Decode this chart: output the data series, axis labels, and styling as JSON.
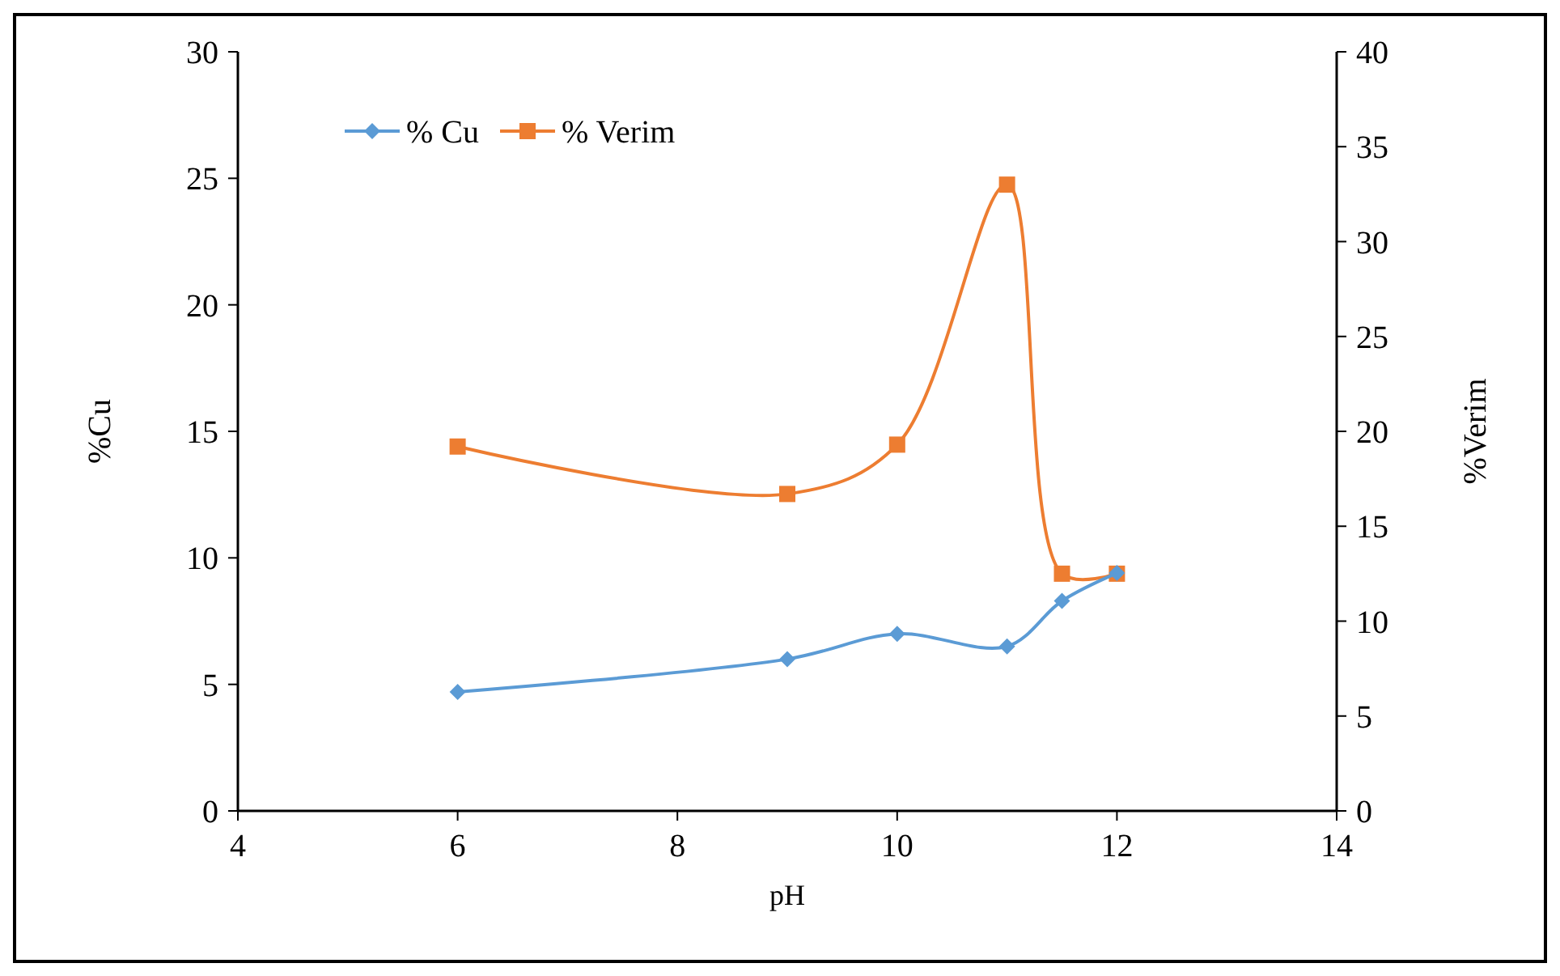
{
  "chart_data": {
    "type": "line",
    "xlabel": "pH",
    "ylabel": "%Cu",
    "y2label": "%Verim",
    "x": [
      6,
      9,
      10,
      11,
      11.5,
      12
    ],
    "series": [
      {
        "name": "% Cu",
        "color": "#5b9bd5",
        "marker": "diamond",
        "values": [
          4.7,
          6.0,
          7.0,
          6.5,
          8.3,
          9.4
        ]
      },
      {
        "name": "% Verim",
        "color": "#ed7d31",
        "marker": "square",
        "axis": "y2",
        "values": [
          19.2,
          16.7,
          19.3,
          33.0,
          12.5,
          12.5
        ]
      }
    ],
    "xlim": [
      4,
      14
    ],
    "xticks": [
      4,
      6,
      8,
      10,
      12,
      14
    ],
    "ylim": [
      0,
      30
    ],
    "yticks": [
      0,
      5,
      10,
      15,
      20,
      25,
      30
    ],
    "y2lim": [
      0,
      40
    ],
    "y2ticks": [
      0,
      5,
      10,
      15,
      20,
      25,
      30,
      35,
      40
    ],
    "grid": false,
    "legend": "top left"
  }
}
